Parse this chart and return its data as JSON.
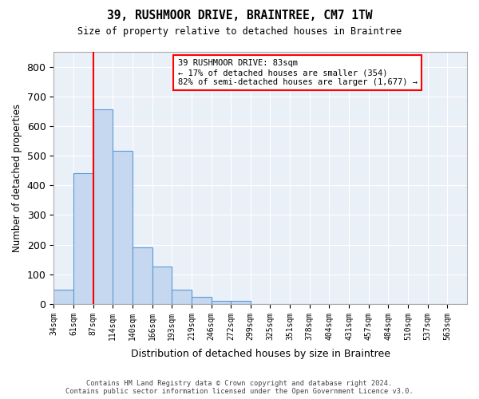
{
  "title": "39, RUSHMOOR DRIVE, BRAINTREE, CM7 1TW",
  "subtitle": "Size of property relative to detached houses in Braintree",
  "xlabel": "Distribution of detached houses by size in Braintree",
  "ylabel": "Number of detached properties",
  "bin_labels": [
    "34sqm",
    "61sqm",
    "87sqm",
    "114sqm",
    "140sqm",
    "166sqm",
    "193sqm",
    "219sqm",
    "246sqm",
    "272sqm",
    "299sqm",
    "325sqm",
    "351sqm",
    "378sqm",
    "404sqm",
    "431sqm",
    "457sqm",
    "484sqm",
    "510sqm",
    "537sqm",
    "563sqm"
  ],
  "bar_values": [
    47,
    442,
    657,
    516,
    192,
    125,
    47,
    24,
    10,
    10,
    0,
    0,
    0,
    0,
    0,
    0,
    0,
    0,
    0,
    0,
    0
  ],
  "bar_color": "#c5d8f0",
  "bar_edge_color": "#5b9bd5",
  "red_line_x": 1.5,
  "annotation_text": "39 RUSHMOOR DRIVE: 83sqm\n← 17% of detached houses are smaller (354)\n82% of semi-detached houses are larger (1,677) →",
  "annotation_box_color": "white",
  "annotation_box_edge_color": "red",
  "ylim": [
    0,
    850
  ],
  "yticks": [
    0,
    100,
    200,
    300,
    400,
    500,
    600,
    700,
    800
  ],
  "background_color": "#eaf0f8",
  "grid_color": "white",
  "footer_line1": "Contains HM Land Registry data © Crown copyright and database right 2024.",
  "footer_line2": "Contains public sector information licensed under the Open Government Licence v3.0."
}
